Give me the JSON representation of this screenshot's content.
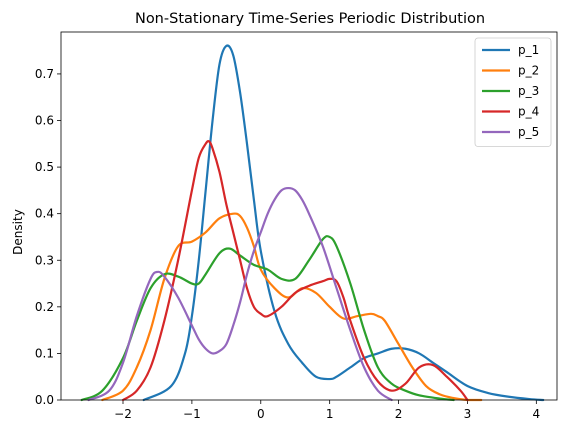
{
  "chart_data": {
    "type": "line",
    "title": "Non-Stationary Time-Series Periodic Distribution",
    "xlabel": "",
    "ylabel": "Density",
    "xlim": [
      -2.9,
      4.3
    ],
    "ylim": [
      0,
      0.79
    ],
    "xticks": [
      -2,
      -1,
      0,
      1,
      2,
      3,
      4
    ],
    "yticks": [
      0.0,
      0.1,
      0.2,
      0.3,
      0.4,
      0.5,
      0.6,
      0.7
    ],
    "ytick_labels": [
      "0.0",
      "0.1",
      "0.2",
      "0.3",
      "0.4",
      "0.5",
      "0.6",
      "0.7"
    ],
    "legend_position": "top-right",
    "series": [
      {
        "name": "p_1",
        "color": "#1f77b4",
        "x": [
          -1.7,
          -1.3,
          -1.1,
          -1.0,
          -0.9,
          -0.8,
          -0.7,
          -0.6,
          -0.5,
          -0.4,
          -0.3,
          -0.2,
          -0.1,
          0.0,
          0.2,
          0.4,
          0.6,
          0.8,
          1.0,
          1.1,
          1.3,
          1.5,
          1.7,
          1.9,
          2.1,
          2.3,
          2.5,
          2.7,
          3.0,
          3.3,
          3.6,
          3.9,
          4.1
        ],
        "values": [
          0.0,
          0.03,
          0.1,
          0.18,
          0.3,
          0.45,
          0.6,
          0.72,
          0.76,
          0.74,
          0.66,
          0.55,
          0.43,
          0.32,
          0.19,
          0.12,
          0.08,
          0.05,
          0.045,
          0.05,
          0.07,
          0.09,
          0.1,
          0.11,
          0.11,
          0.1,
          0.08,
          0.06,
          0.03,
          0.015,
          0.007,
          0.002,
          0.0
        ]
      },
      {
        "name": "p_2",
        "color": "#ff7f0e",
        "x": [
          -2.3,
          -2.0,
          -1.8,
          -1.6,
          -1.4,
          -1.2,
          -1.0,
          -0.8,
          -0.6,
          -0.4,
          -0.3,
          -0.2,
          -0.1,
          0.0,
          0.2,
          0.4,
          0.6,
          0.8,
          1.0,
          1.2,
          1.4,
          1.6,
          1.7,
          1.8,
          2.0,
          2.2,
          2.4,
          2.6,
          2.8,
          3.0,
          3.2
        ],
        "values": [
          0.0,
          0.02,
          0.07,
          0.15,
          0.26,
          0.33,
          0.34,
          0.36,
          0.39,
          0.4,
          0.395,
          0.37,
          0.33,
          0.28,
          0.24,
          0.22,
          0.24,
          0.23,
          0.2,
          0.175,
          0.18,
          0.185,
          0.18,
          0.17,
          0.12,
          0.07,
          0.03,
          0.012,
          0.004,
          0.0,
          0.0
        ]
      },
      {
        "name": "p_3",
        "color": "#2ca02c",
        "x": [
          -2.6,
          -2.3,
          -2.0,
          -1.8,
          -1.6,
          -1.4,
          -1.2,
          -1.0,
          -0.9,
          -0.8,
          -0.6,
          -0.45,
          -0.3,
          -0.1,
          0.1,
          0.3,
          0.5,
          0.7,
          0.9,
          1.0,
          1.1,
          1.3,
          1.5,
          1.7,
          1.9,
          2.1,
          2.3,
          2.6,
          2.8
        ],
        "values": [
          0.0,
          0.02,
          0.09,
          0.17,
          0.24,
          0.27,
          0.265,
          0.25,
          0.25,
          0.27,
          0.315,
          0.325,
          0.31,
          0.29,
          0.28,
          0.26,
          0.26,
          0.3,
          0.345,
          0.35,
          0.33,
          0.25,
          0.15,
          0.07,
          0.035,
          0.02,
          0.01,
          0.003,
          0.0
        ]
      },
      {
        "name": "p_4",
        "color": "#d62728",
        "x": [
          -2.0,
          -1.8,
          -1.6,
          -1.4,
          -1.2,
          -1.0,
          -0.9,
          -0.8,
          -0.75,
          -0.7,
          -0.6,
          -0.5,
          -0.4,
          -0.3,
          -0.2,
          -0.1,
          0.0,
          0.1,
          0.3,
          0.5,
          0.7,
          0.9,
          1.0,
          1.1,
          1.2,
          1.3,
          1.5,
          1.7,
          1.9,
          2.1,
          2.3,
          2.5,
          2.7,
          2.9,
          3.0
        ],
        "values": [
          0.0,
          0.02,
          0.07,
          0.17,
          0.3,
          0.45,
          0.52,
          0.55,
          0.555,
          0.54,
          0.49,
          0.42,
          0.36,
          0.3,
          0.24,
          0.2,
          0.185,
          0.18,
          0.2,
          0.23,
          0.245,
          0.255,
          0.26,
          0.255,
          0.22,
          0.17,
          0.09,
          0.04,
          0.02,
          0.035,
          0.07,
          0.075,
          0.05,
          0.02,
          0.0
        ]
      },
      {
        "name": "p_5",
        "color": "#9467bd",
        "x": [
          -2.5,
          -2.2,
          -2.0,
          -1.8,
          -1.6,
          -1.5,
          -1.4,
          -1.2,
          -1.0,
          -0.9,
          -0.8,
          -0.7,
          -0.6,
          -0.5,
          -0.4,
          -0.3,
          -0.2,
          -0.1,
          0.0,
          0.1,
          0.2,
          0.3,
          0.4,
          0.5,
          0.6,
          0.7,
          0.9,
          1.1,
          1.3,
          1.5,
          1.7,
          1.9
        ],
        "values": [
          0.0,
          0.02,
          0.08,
          0.18,
          0.26,
          0.275,
          0.265,
          0.22,
          0.16,
          0.13,
          0.11,
          0.1,
          0.105,
          0.12,
          0.16,
          0.21,
          0.27,
          0.32,
          0.36,
          0.4,
          0.43,
          0.45,
          0.455,
          0.45,
          0.43,
          0.4,
          0.33,
          0.24,
          0.15,
          0.07,
          0.02,
          0.0
        ]
      }
    ]
  }
}
